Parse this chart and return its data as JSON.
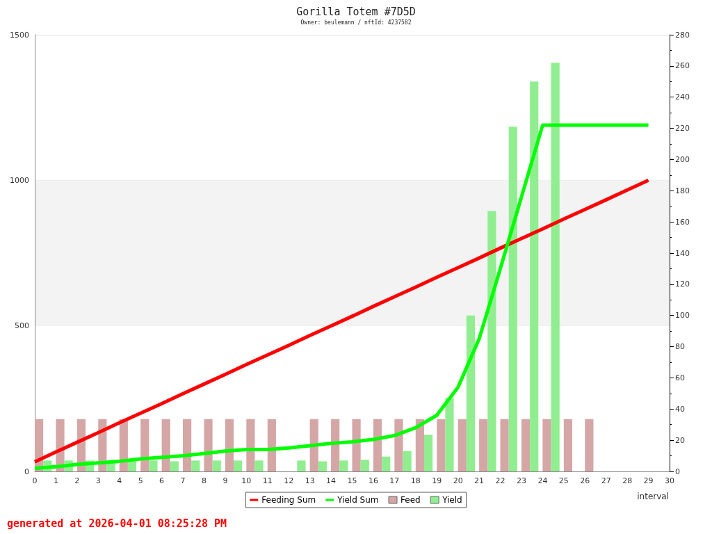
{
  "chart_data": {
    "type": "bar",
    "title": "Gorilla Totem #7D5D",
    "subtitle": "Owner: beulemann / nftId: 4237582",
    "xlabel": "interval",
    "annotations": [
      "generated at 2026-04-01 08:25:28 PM"
    ],
    "x": [
      0,
      1,
      2,
      3,
      4,
      5,
      6,
      7,
      8,
      9,
      10,
      11,
      12,
      13,
      14,
      15,
      16,
      17,
      18,
      19,
      20,
      21,
      22,
      23,
      24,
      25,
      26,
      27,
      28,
      29
    ],
    "series": [
      {
        "name": "Feeding Sum",
        "type": "line",
        "color": "#ff0000",
        "values": [
          33,
          67,
          100,
          133,
          167,
          200,
          233,
          267,
          300,
          333,
          367,
          400,
          433,
          467,
          500,
          533,
          567,
          600,
          633,
          667,
          700,
          733,
          767,
          800,
          833,
          867,
          900,
          933,
          967,
          1000
        ]
      },
      {
        "name": "Yield Sum",
        "type": "line",
        "color": "#00ff00",
        "axis": "y2",
        "values": [
          2,
          3,
          4.5,
          5.5,
          6.5,
          8,
          9,
          10,
          11.5,
          13,
          14,
          14,
          15,
          16.5,
          18,
          19,
          20.5,
          23,
          28,
          36,
          54,
          85,
          130,
          176,
          222,
          222,
          222,
          222,
          222,
          222
        ]
      },
      {
        "name": "Feed",
        "color": "#d4a6a6",
        "axis": "y2",
        "x": [
          0.2,
          1.2,
          2.2,
          3.2,
          4.2,
          5.2,
          6.2,
          7.2,
          8.2,
          9.2,
          10.2,
          11.2,
          12.2,
          13.2,
          14.2,
          15.2,
          16.2,
          17.2,
          18.2,
          19.2,
          20.2,
          21.2,
          22.2,
          23.2,
          24.2,
          25.2,
          26.2
        ],
        "values": [
          33.5,
          33.5,
          33.5,
          33.5,
          33.5,
          33.5,
          33.5,
          33.5,
          33.5,
          33.5,
          33.5,
          33.5,
          null,
          33.5,
          33.5,
          33.5,
          33.5,
          33.5,
          33.5,
          33.5,
          33.5,
          33.5,
          33.5,
          33.5,
          33.5,
          33.5,
          33.5
        ]
      },
      {
        "name": "Yield",
        "color": "#90ee90",
        "axis": "y2",
        "x": [
          0.6,
          1.6,
          2.6,
          3.6,
          4.6,
          5.6,
          6.6,
          7.6,
          8.6,
          9.6,
          10.6,
          11.6,
          12.6,
          13.6,
          14.6,
          15.6,
          16.6,
          17.6,
          18.6,
          19.6,
          20.6,
          21.6,
          22.6,
          23.6,
          24.6
        ],
        "values": [
          7,
          7,
          7,
          7,
          7,
          7,
          6.5,
          7,
          7,
          7,
          7,
          null,
          7,
          6.5,
          7,
          7.5,
          9.5,
          13,
          23.5,
          47,
          100,
          167,
          221,
          250,
          262
        ]
      }
    ],
    "xlim": [
      0,
      30
    ],
    "xticks": [
      0,
      1,
      2,
      3,
      4,
      5,
      6,
      7,
      8,
      9,
      10,
      11,
      12,
      13,
      14,
      15,
      16,
      17,
      18,
      19,
      20,
      21,
      22,
      23,
      24,
      25,
      26,
      27,
      28,
      29,
      30
    ],
    "ylim": [
      0,
      1500
    ],
    "yticks": [
      0,
      500,
      1000,
      1500
    ],
    "y2lim": [
      0,
      280
    ],
    "y2ticks": [
      0,
      {
        "value": 10,
        "label": null
      },
      20,
      {
        "value": 30,
        "label": null
      },
      40,
      {
        "value": 50,
        "label": null
      },
      60,
      {
        "value": 70,
        "label": null
      },
      80,
      {
        "value": 90,
        "label": null
      },
      100,
      {
        "value": 110,
        "label": null
      },
      120,
      {
        "value": 130,
        "label": null
      },
      140,
      {
        "value": 150,
        "label": null
      },
      160,
      {
        "value": 170,
        "label": null
      },
      180,
      {
        "value": 190,
        "label": null
      },
      200,
      {
        "value": 210,
        "label": null
      },
      220,
      {
        "value": 230,
        "label": null
      },
      240,
      {
        "value": 250,
        "label": null
      },
      260,
      {
        "value": 270,
        "label": null
      },
      280
    ],
    "bands": [
      {
        "axis": "y",
        "from": 500,
        "to": 1000,
        "color": "#f3f3f3"
      }
    ],
    "grid": "y",
    "legend": "bottom",
    "marker": "none"
  }
}
